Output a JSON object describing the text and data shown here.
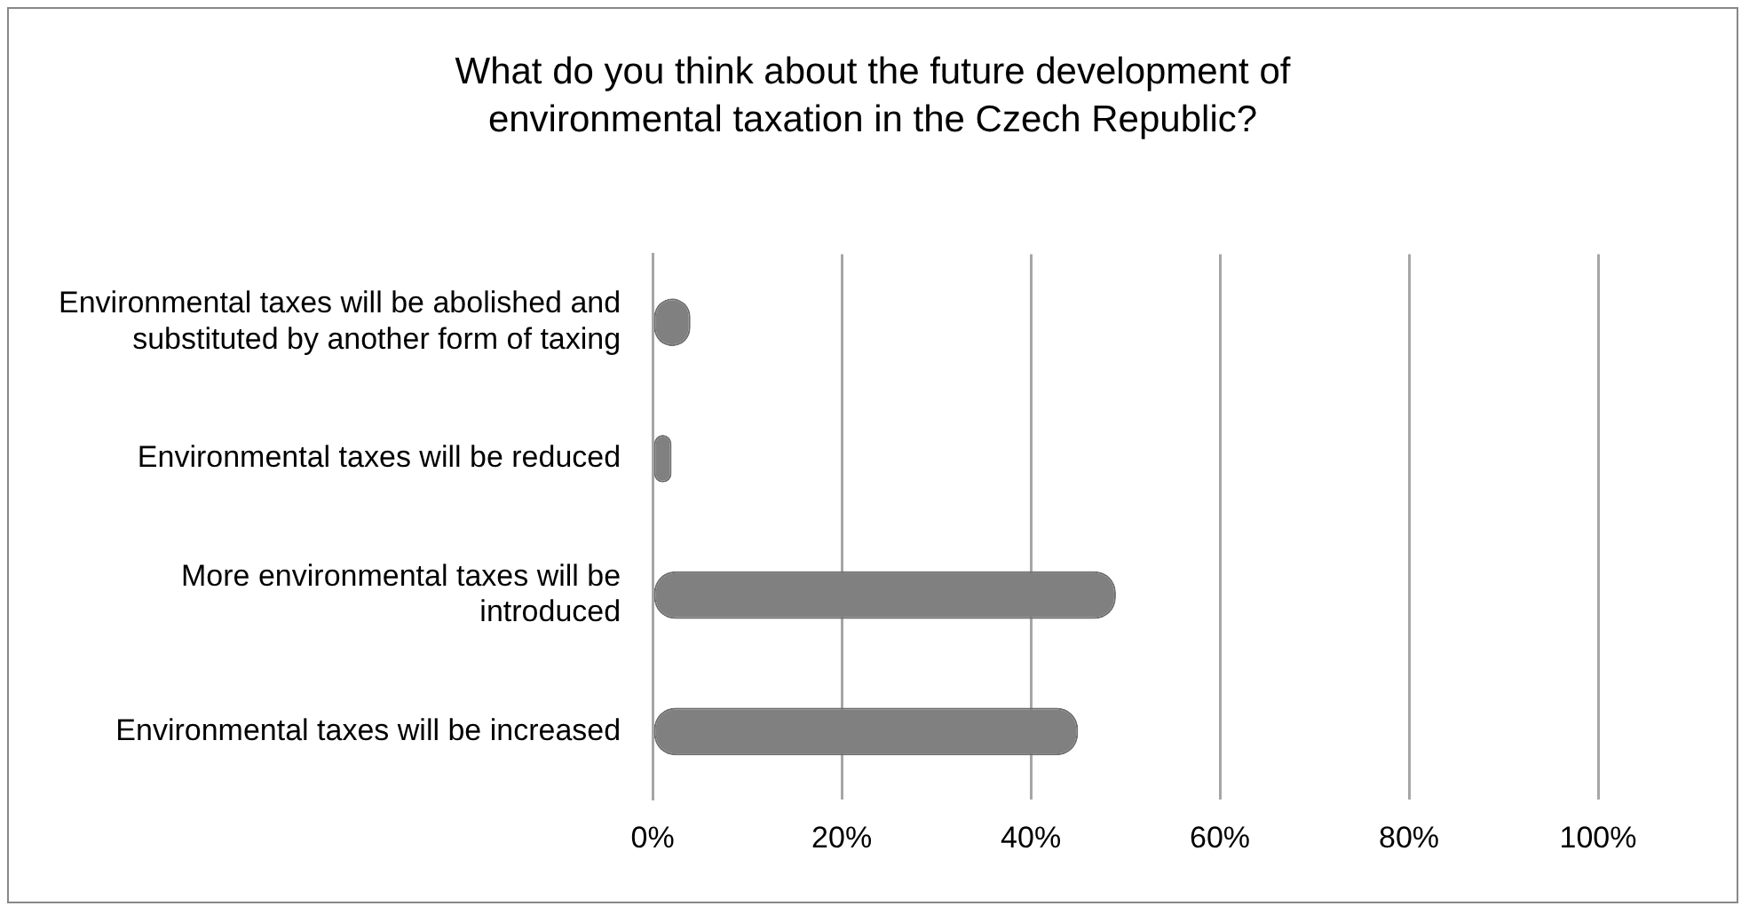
{
  "chart_data": {
    "type": "bar",
    "orientation": "horizontal",
    "title": "What do you think about the future development of environmental taxation in the Czech Republic?",
    "categories": [
      "Environmental taxes will be abolished and substituted by another form of taxing",
      "Environmental taxes will be reduced",
      "More environmental taxes will be introduced",
      "Environmental taxes will be increased"
    ],
    "values": [
      4,
      2,
      49,
      45
    ],
    "color": "#808080",
    "xlim": [
      0,
      100
    ],
    "xticks": [
      {
        "value": 0,
        "label": "0%"
      },
      {
        "value": 20,
        "label": "20%"
      },
      {
        "value": 40,
        "label": "40%"
      },
      {
        "value": 60,
        "label": "60%"
      },
      {
        "value": 80,
        "label": "80%"
      },
      {
        "value": 100,
        "label": "100%"
      }
    ],
    "grid": "x",
    "legend": false
  }
}
